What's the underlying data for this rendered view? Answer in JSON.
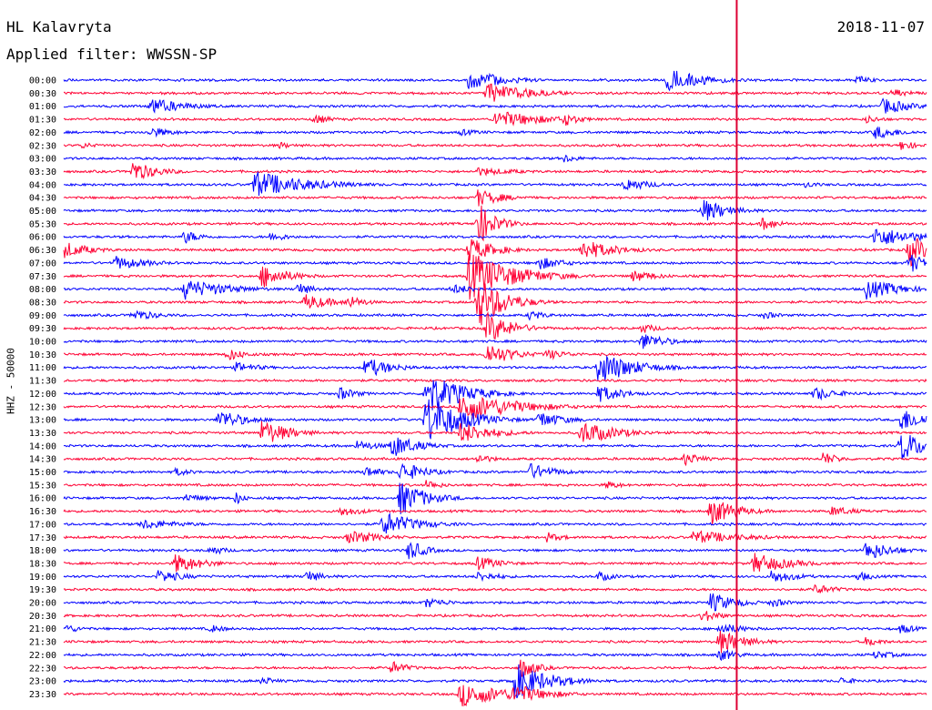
{
  "header": {
    "station": "HL Kalavryta",
    "date": "2018-11-07",
    "filter": "Applied filter: WWSSN-SP"
  },
  "colors": {
    "even_row": "#0000ff",
    "odd_row": "#ff0033",
    "marker": "#dd0033"
  },
  "chart_data": {
    "type": "line",
    "description": "24h helicorder seismogram, 48 traces of 30 minutes",
    "ylabel": "HHZ - 50000",
    "row_labels": [
      "00:00",
      "00:30",
      "01:00",
      "01:30",
      "02:00",
      "02:30",
      "03:00",
      "03:30",
      "04:00",
      "04:30",
      "05:00",
      "05:30",
      "06:00",
      "06:30",
      "07:00",
      "07:30",
      "08:00",
      "08:30",
      "09:00",
      "09:30",
      "10:00",
      "10:30",
      "11:00",
      "11:30",
      "12:00",
      "12:30",
      "13:00",
      "13:30",
      "14:00",
      "14:30",
      "15:00",
      "15:30",
      "16:00",
      "16:30",
      "17:00",
      "17:30",
      "18:00",
      "18:30",
      "19:00",
      "19:30",
      "20:00",
      "20:30",
      "21:00",
      "21:30",
      "22:00",
      "22:30",
      "23:00",
      "23:30"
    ],
    "current_time_marker_fraction": 0.78,
    "events": [
      {
        "row": 0,
        "t": 0.47,
        "amp": 12,
        "dur": 0.04
      },
      {
        "row": 0,
        "t": 0.7,
        "amp": 14,
        "dur": 0.04
      },
      {
        "row": 0,
        "t": 0.92,
        "amp": 5,
        "dur": 0.02
      },
      {
        "row": 1,
        "t": 0.49,
        "amp": 12,
        "dur": 0.05
      },
      {
        "row": 1,
        "t": 0.96,
        "amp": 5,
        "dur": 0.03
      },
      {
        "row": 2,
        "t": 0.1,
        "amp": 10,
        "dur": 0.04
      },
      {
        "row": 2,
        "t": 0.95,
        "amp": 10,
        "dur": 0.03
      },
      {
        "row": 3,
        "t": 0.29,
        "amp": 6,
        "dur": 0.02
      },
      {
        "row": 3,
        "t": 0.5,
        "amp": 10,
        "dur": 0.06
      },
      {
        "row": 3,
        "t": 0.58,
        "amp": 8,
        "dur": 0.02
      },
      {
        "row": 3,
        "t": 0.93,
        "amp": 5,
        "dur": 0.02
      },
      {
        "row": 4,
        "t": 0.1,
        "amp": 6,
        "dur": 0.03
      },
      {
        "row": 4,
        "t": 0.46,
        "amp": 4,
        "dur": 0.03
      },
      {
        "row": 4,
        "t": 0.94,
        "amp": 8,
        "dur": 0.03
      },
      {
        "row": 5,
        "t": 0.02,
        "amp": 4,
        "dur": 0.02
      },
      {
        "row": 5,
        "t": 0.25,
        "amp": 4,
        "dur": 0.02
      },
      {
        "row": 5,
        "t": 0.97,
        "amp": 6,
        "dur": 0.02
      },
      {
        "row": 6,
        "t": 0.58,
        "amp": 5,
        "dur": 0.02
      },
      {
        "row": 7,
        "t": 0.08,
        "amp": 12,
        "dur": 0.03
      },
      {
        "row": 7,
        "t": 0.48,
        "amp": 5,
        "dur": 0.05
      },
      {
        "row": 8,
        "t": 0.22,
        "amp": 16,
        "dur": 0.06
      },
      {
        "row": 8,
        "t": 0.65,
        "amp": 8,
        "dur": 0.03
      },
      {
        "row": 8,
        "t": 0.86,
        "amp": 4,
        "dur": 0.02
      },
      {
        "row": 9,
        "t": 0.48,
        "amp": 10,
        "dur": 0.03
      },
      {
        "row": 10,
        "t": 0.74,
        "amp": 14,
        "dur": 0.03
      },
      {
        "row": 11,
        "t": 0.48,
        "amp": 25,
        "dur": 0.02
      },
      {
        "row": 11,
        "t": 0.81,
        "amp": 8,
        "dur": 0.02
      },
      {
        "row": 12,
        "t": 0.14,
        "amp": 8,
        "dur": 0.02
      },
      {
        "row": 12,
        "t": 0.24,
        "amp": 6,
        "dur": 0.02
      },
      {
        "row": 12,
        "t": 0.94,
        "amp": 12,
        "dur": 0.05
      },
      {
        "row": 13,
        "t": 0.0,
        "amp": 10,
        "dur": 0.03
      },
      {
        "row": 13,
        "t": 0.47,
        "amp": 14,
        "dur": 0.03
      },
      {
        "row": 13,
        "t": 0.6,
        "amp": 12,
        "dur": 0.04
      },
      {
        "row": 13,
        "t": 0.98,
        "amp": 20,
        "dur": 0.02
      },
      {
        "row": 14,
        "t": 0.06,
        "amp": 8,
        "dur": 0.04
      },
      {
        "row": 14,
        "t": 0.55,
        "amp": 8,
        "dur": 0.03
      },
      {
        "row": 14,
        "t": 0.98,
        "amp": 12,
        "dur": 0.02
      },
      {
        "row": 15,
        "t": 0.23,
        "amp": 14,
        "dur": 0.03
      },
      {
        "row": 15,
        "t": 0.47,
        "amp": 28,
        "dur": 0.05
      },
      {
        "row": 15,
        "t": 0.66,
        "amp": 7,
        "dur": 0.03
      },
      {
        "row": 16,
        "t": 0.14,
        "amp": 12,
        "dur": 0.05
      },
      {
        "row": 16,
        "t": 0.27,
        "amp": 8,
        "dur": 0.02
      },
      {
        "row": 16,
        "t": 0.45,
        "amp": 6,
        "dur": 0.03
      },
      {
        "row": 16,
        "t": 0.93,
        "amp": 12,
        "dur": 0.04
      },
      {
        "row": 17,
        "t": 0.28,
        "amp": 10,
        "dur": 0.03
      },
      {
        "row": 17,
        "t": 0.33,
        "amp": 8,
        "dur": 0.02
      },
      {
        "row": 17,
        "t": 0.48,
        "amp": 30,
        "dur": 0.03
      },
      {
        "row": 18,
        "t": 0.08,
        "amp": 7,
        "dur": 0.03
      },
      {
        "row": 18,
        "t": 0.54,
        "amp": 6,
        "dur": 0.02
      },
      {
        "row": 18,
        "t": 0.81,
        "amp": 5,
        "dur": 0.02
      },
      {
        "row": 19,
        "t": 0.49,
        "amp": 18,
        "dur": 0.03
      },
      {
        "row": 19,
        "t": 0.67,
        "amp": 6,
        "dur": 0.02
      },
      {
        "row": 20,
        "t": 0.67,
        "amp": 10,
        "dur": 0.03
      },
      {
        "row": 21,
        "t": 0.19,
        "amp": 8,
        "dur": 0.02
      },
      {
        "row": 21,
        "t": 0.49,
        "amp": 14,
        "dur": 0.03
      },
      {
        "row": 21,
        "t": 0.56,
        "amp": 6,
        "dur": 0.03
      },
      {
        "row": 22,
        "t": 0.2,
        "amp": 6,
        "dur": 0.03
      },
      {
        "row": 22,
        "t": 0.35,
        "amp": 12,
        "dur": 0.03
      },
      {
        "row": 22,
        "t": 0.62,
        "amp": 20,
        "dur": 0.04
      },
      {
        "row": 24,
        "t": 0.32,
        "amp": 8,
        "dur": 0.02
      },
      {
        "row": 24,
        "t": 0.42,
        "amp": 26,
        "dur": 0.04
      },
      {
        "row": 24,
        "t": 0.62,
        "amp": 10,
        "dur": 0.03
      },
      {
        "row": 24,
        "t": 0.87,
        "amp": 8,
        "dur": 0.03
      },
      {
        "row": 25,
        "t": 0.46,
        "amp": 18,
        "dur": 0.06
      },
      {
        "row": 26,
        "t": 0.18,
        "amp": 12,
        "dur": 0.03
      },
      {
        "row": 26,
        "t": 0.42,
        "amp": 30,
        "dur": 0.04
      },
      {
        "row": 26,
        "t": 0.55,
        "amp": 10,
        "dur": 0.03
      },
      {
        "row": 26,
        "t": 0.97,
        "amp": 14,
        "dur": 0.03
      },
      {
        "row": 27,
        "t": 0.23,
        "amp": 16,
        "dur": 0.03
      },
      {
        "row": 27,
        "t": 0.46,
        "amp": 12,
        "dur": 0.04
      },
      {
        "row": 27,
        "t": 0.6,
        "amp": 14,
        "dur": 0.04
      },
      {
        "row": 28,
        "t": 0.34,
        "amp": 6,
        "dur": 0.03
      },
      {
        "row": 28,
        "t": 0.38,
        "amp": 14,
        "dur": 0.03
      },
      {
        "row": 28,
        "t": 0.97,
        "amp": 18,
        "dur": 0.03
      },
      {
        "row": 29,
        "t": 0.48,
        "amp": 6,
        "dur": 0.02
      },
      {
        "row": 29,
        "t": 0.72,
        "amp": 8,
        "dur": 0.02
      },
      {
        "row": 29,
        "t": 0.88,
        "amp": 8,
        "dur": 0.02
      },
      {
        "row": 30,
        "t": 0.13,
        "amp": 5,
        "dur": 0.02
      },
      {
        "row": 30,
        "t": 0.35,
        "amp": 7,
        "dur": 0.02
      },
      {
        "row": 30,
        "t": 0.39,
        "amp": 12,
        "dur": 0.03
      },
      {
        "row": 30,
        "t": 0.54,
        "amp": 10,
        "dur": 0.03
      },
      {
        "row": 31,
        "t": 0.42,
        "amp": 6,
        "dur": 0.02
      },
      {
        "row": 31,
        "t": 0.63,
        "amp": 5,
        "dur": 0.02
      },
      {
        "row": 32,
        "t": 0.14,
        "amp": 5,
        "dur": 0.03
      },
      {
        "row": 32,
        "t": 0.2,
        "amp": 8,
        "dur": 0.01
      },
      {
        "row": 32,
        "t": 0.39,
        "amp": 20,
        "dur": 0.03
      },
      {
        "row": 33,
        "t": 0.32,
        "amp": 6,
        "dur": 0.03
      },
      {
        "row": 33,
        "t": 0.75,
        "amp": 16,
        "dur": 0.03
      },
      {
        "row": 33,
        "t": 0.89,
        "amp": 6,
        "dur": 0.03
      },
      {
        "row": 34,
        "t": 0.09,
        "amp": 6,
        "dur": 0.05
      },
      {
        "row": 34,
        "t": 0.37,
        "amp": 14,
        "dur": 0.04
      },
      {
        "row": 35,
        "t": 0.33,
        "amp": 8,
        "dur": 0.04
      },
      {
        "row": 35,
        "t": 0.56,
        "amp": 6,
        "dur": 0.02
      },
      {
        "row": 35,
        "t": 0.73,
        "amp": 8,
        "dur": 0.06
      },
      {
        "row": 36,
        "t": 0.17,
        "amp": 6,
        "dur": 0.02
      },
      {
        "row": 36,
        "t": 0.4,
        "amp": 12,
        "dur": 0.02
      },
      {
        "row": 36,
        "t": 0.93,
        "amp": 12,
        "dur": 0.03
      },
      {
        "row": 37,
        "t": 0.13,
        "amp": 12,
        "dur": 0.03
      },
      {
        "row": 37,
        "t": 0.48,
        "amp": 8,
        "dur": 0.03
      },
      {
        "row": 37,
        "t": 0.8,
        "amp": 12,
        "dur": 0.04
      },
      {
        "row": 38,
        "t": 0.11,
        "amp": 8,
        "dur": 0.03
      },
      {
        "row": 38,
        "t": 0.28,
        "amp": 8,
        "dur": 0.02
      },
      {
        "row": 38,
        "t": 0.48,
        "amp": 6,
        "dur": 0.03
      },
      {
        "row": 38,
        "t": 0.62,
        "amp": 6,
        "dur": 0.02
      },
      {
        "row": 38,
        "t": 0.82,
        "amp": 8,
        "dur": 0.03
      },
      {
        "row": 38,
        "t": 0.92,
        "amp": 6,
        "dur": 0.02
      },
      {
        "row": 39,
        "t": 0.87,
        "amp": 6,
        "dur": 0.03
      },
      {
        "row": 40,
        "t": 0.42,
        "amp": 6,
        "dur": 0.03
      },
      {
        "row": 40,
        "t": 0.75,
        "amp": 12,
        "dur": 0.03
      },
      {
        "row": 40,
        "t": 0.82,
        "amp": 6,
        "dur": 0.02
      },
      {
        "row": 41,
        "t": 0.74,
        "amp": 8,
        "dur": 0.02
      },
      {
        "row": 42,
        "t": 0.0,
        "amp": 6,
        "dur": 0.02
      },
      {
        "row": 42,
        "t": 0.17,
        "amp": 5,
        "dur": 0.02
      },
      {
        "row": 42,
        "t": 0.76,
        "amp": 7,
        "dur": 0.03
      },
      {
        "row": 42,
        "t": 0.97,
        "amp": 6,
        "dur": 0.02
      },
      {
        "row": 43,
        "t": 0.76,
        "amp": 14,
        "dur": 0.03
      },
      {
        "row": 43,
        "t": 0.93,
        "amp": 6,
        "dur": 0.02
      },
      {
        "row": 44,
        "t": 0.76,
        "amp": 8,
        "dur": 0.02
      },
      {
        "row": 44,
        "t": 0.94,
        "amp": 5,
        "dur": 0.03
      },
      {
        "row": 45,
        "t": 0.38,
        "amp": 8,
        "dur": 0.02
      },
      {
        "row": 45,
        "t": 0.53,
        "amp": 12,
        "dur": 0.02
      },
      {
        "row": 46,
        "t": 0.23,
        "amp": 5,
        "dur": 0.02
      },
      {
        "row": 46,
        "t": 0.52,
        "amp": 22,
        "dur": 0.04
      },
      {
        "row": 46,
        "t": 0.9,
        "amp": 5,
        "dur": 0.02
      },
      {
        "row": 47,
        "t": 0.46,
        "amp": 14,
        "dur": 0.06
      },
      {
        "row": 47,
        "t": 0.52,
        "amp": 12,
        "dur": 0.04
      }
    ]
  }
}
